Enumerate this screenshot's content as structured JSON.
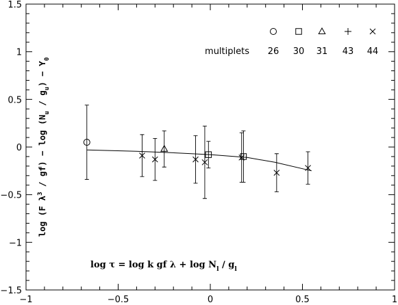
{
  "chart_data": {
    "type": "scatter",
    "title": "",
    "xlabel": "",
    "ylabel": "log (F λ³ / gf) − log (N_u / g_u) − Y₀",
    "ylabel_parts": {
      "a": "log (F λ",
      "sup1": "3",
      "b": " / gf) − log (N",
      "sub1": "u",
      "c": " / g",
      "sub2": "u",
      "d": ") − Y",
      "sub3": "0"
    },
    "xlim": [
      -1,
      1
    ],
    "ylim": [
      -1.5,
      1.5
    ],
    "x_ticks": [
      -1,
      -0.5,
      0,
      0.5,
      1
    ],
    "x_tick_labels": [
      "−1",
      "−0.5",
      "0",
      "0.5",
      "1"
    ],
    "y_ticks": [
      -1.5,
      -1,
      -0.5,
      0,
      0.5,
      1,
      1.5
    ],
    "y_tick_labels": [
      "−1.5",
      "−1",
      "−0.5",
      "0",
      "0.5",
      "1",
      "1.5"
    ],
    "grid": false,
    "legend": {
      "placement": "top-right",
      "header": "multiplets",
      "entries": [
        {
          "marker": "circle",
          "label": "26"
        },
        {
          "marker": "square",
          "label": "30"
        },
        {
          "marker": "triangle",
          "label": "31"
        },
        {
          "marker": "plus",
          "label": "43"
        },
        {
          "marker": "cross",
          "label": "44"
        }
      ]
    },
    "annotation": {
      "a": "log τ = log k gf λ + log N",
      "sub1": "l",
      "b": " / g",
      "sub2": "l"
    },
    "series": [
      {
        "marker": "circle",
        "points": [
          {
            "x": -0.67,
            "y": 0.05,
            "err": 0.39
          }
        ]
      },
      {
        "marker": "square",
        "points": [
          {
            "x": -0.01,
            "y": -0.08,
            "err": 0.14
          },
          {
            "x": 0.18,
            "y": -0.1,
            "err": 0.27
          }
        ]
      },
      {
        "marker": "triangle",
        "points": [
          {
            "x": -0.25,
            "y": -0.02,
            "err": 0.19
          }
        ]
      },
      {
        "marker": "plus",
        "points": []
      },
      {
        "marker": "cross",
        "points": [
          {
            "x": -0.37,
            "y": -0.09,
            "err": 0.22
          },
          {
            "x": -0.3,
            "y": -0.13,
            "err": 0.22
          },
          {
            "x": -0.08,
            "y": -0.13,
            "err": 0.25
          },
          {
            "x": -0.03,
            "y": -0.16,
            "err": 0.38
          },
          {
            "x": 0.17,
            "y": -0.11,
            "err": 0.26
          },
          {
            "x": 0.36,
            "y": -0.27,
            "err": 0.2
          },
          {
            "x": 0.53,
            "y": -0.22,
            "err": 0.17
          }
        ]
      }
    ],
    "fit_curve": [
      {
        "x": -0.67,
        "y": -0.03
      },
      {
        "x": -0.4,
        "y": -0.045
      },
      {
        "x": -0.2,
        "y": -0.06
      },
      {
        "x": 0.0,
        "y": -0.08
      },
      {
        "x": 0.2,
        "y": -0.11
      },
      {
        "x": 0.35,
        "y": -0.16
      },
      {
        "x": 0.55,
        "y": -0.25
      }
    ]
  }
}
